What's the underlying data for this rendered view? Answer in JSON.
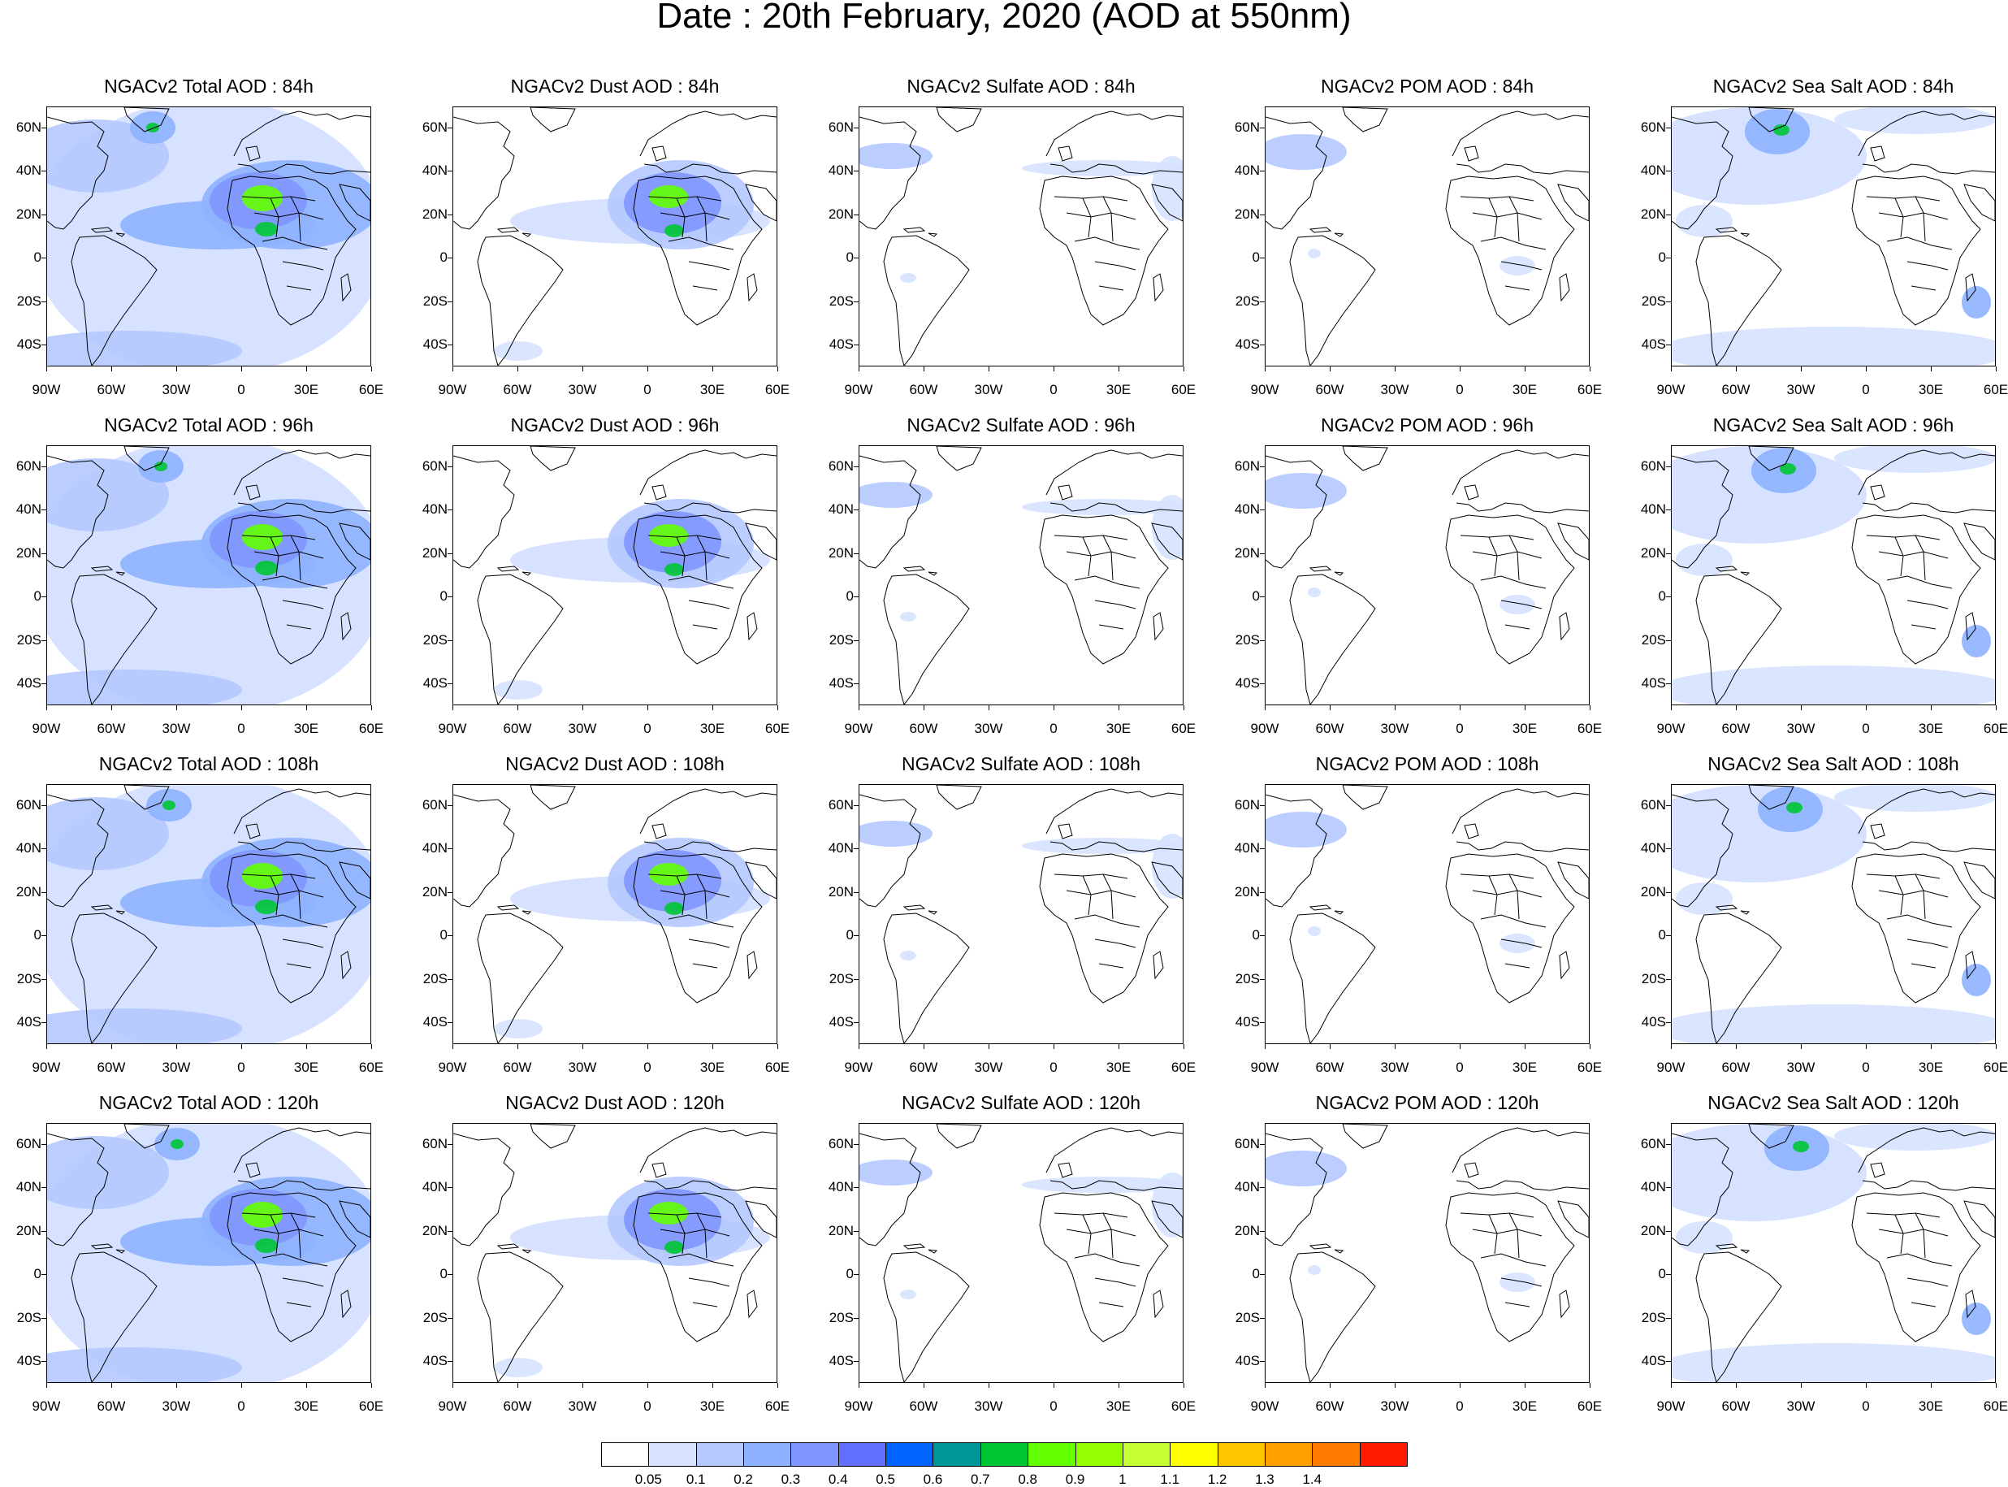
{
  "main_title": "Date : 20th February, 2020 (AOD at 550nm)",
  "lat_labels": [
    "60N",
    "40N",
    "20N",
    "0",
    "20S",
    "40S"
  ],
  "lon_labels": [
    "90W",
    "60W",
    "30W",
    "0",
    "30E",
    "60E"
  ],
  "panels": [
    {
      "title": "NGACv2 Total AOD : 84h",
      "species": "total",
      "lead_hours": 84
    },
    {
      "title": "NGACv2 Dust AOD : 84h",
      "species": "dust",
      "lead_hours": 84
    },
    {
      "title": "NGACv2 Sulfate AOD : 84h",
      "species": "sulfate",
      "lead_hours": 84
    },
    {
      "title": "NGACv2 POM AOD : 84h",
      "species": "pom",
      "lead_hours": 84
    },
    {
      "title": "NGACv2 Sea Salt AOD : 84h",
      "species": "seasalt",
      "lead_hours": 84
    },
    {
      "title": "NGACv2 Total AOD : 96h",
      "species": "total",
      "lead_hours": 96
    },
    {
      "title": "NGACv2 Dust AOD : 96h",
      "species": "dust",
      "lead_hours": 96
    },
    {
      "title": "NGACv2 Sulfate AOD : 96h",
      "species": "sulfate",
      "lead_hours": 96
    },
    {
      "title": "NGACv2 POM AOD : 96h",
      "species": "pom",
      "lead_hours": 96
    },
    {
      "title": "NGACv2 Sea Salt AOD : 96h",
      "species": "seasalt",
      "lead_hours": 96
    },
    {
      "title": "NGACv2 Total AOD : 108h",
      "species": "total",
      "lead_hours": 108
    },
    {
      "title": "NGACv2 Dust AOD : 108h",
      "species": "dust",
      "lead_hours": 108
    },
    {
      "title": "NGACv2 Sulfate AOD : 108h",
      "species": "sulfate",
      "lead_hours": 108
    },
    {
      "title": "NGACv2 POM AOD : 108h",
      "species": "pom",
      "lead_hours": 108
    },
    {
      "title": "NGACv2 Sea Salt AOD : 108h",
      "species": "seasalt",
      "lead_hours": 108
    },
    {
      "title": "NGACv2 Total AOD : 120h",
      "species": "total",
      "lead_hours": 120
    },
    {
      "title": "NGACv2 Dust AOD : 120h",
      "species": "dust",
      "lead_hours": 120
    },
    {
      "title": "NGACv2 Sulfate AOD : 120h",
      "species": "sulfate",
      "lead_hours": 120
    },
    {
      "title": "NGACv2 POM AOD : 120h",
      "species": "pom",
      "lead_hours": 120
    },
    {
      "title": "NGACv2 Sea Salt  AOD : 120h",
      "species": "seasalt",
      "lead_hours": 120
    }
  ],
  "colorbar": {
    "colors": [
      "#ffffff",
      "#d6e2ff",
      "#b5c9ff",
      "#8eb2ff",
      "#7f96ff",
      "#6370ff",
      "#0063ff",
      "#009696",
      "#00c633",
      "#63ff00",
      "#96ff00",
      "#c6ff33",
      "#ffff00",
      "#ffc600",
      "#ffa000",
      "#ff7c00",
      "#ff1900"
    ],
    "labels": [
      "0.05",
      "0.1",
      "0.2",
      "0.3",
      "0.4",
      "0.5",
      "0.6",
      "0.7",
      "0.8",
      "0.9",
      "1",
      "1.1",
      "1.2",
      "1.3",
      "1.4"
    ]
  }
}
